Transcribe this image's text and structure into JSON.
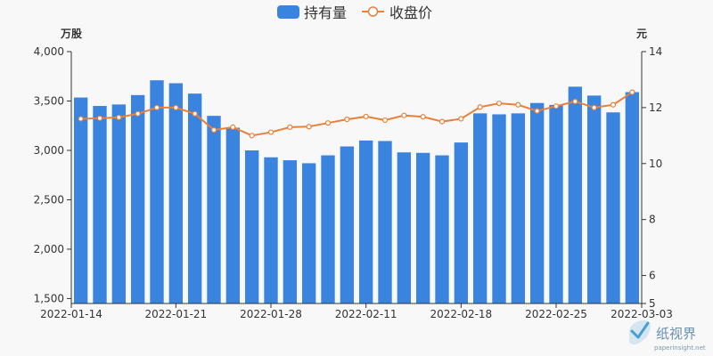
{
  "chart_data": {
    "type": "bar+line",
    "categories": [
      "2022-01-14",
      "2022-01-17",
      "2022-01-18",
      "2022-01-19",
      "2022-01-20",
      "2022-01-21",
      "2022-01-24",
      "2022-01-25",
      "2022-01-26",
      "2022-01-27",
      "2022-01-28",
      "2022-02-07",
      "2022-02-08",
      "2022-02-09",
      "2022-02-10",
      "2022-02-11",
      "2022-02-14",
      "2022-02-15",
      "2022-02-16",
      "2022-02-17",
      "2022-02-18",
      "2022-02-21",
      "2022-02-22",
      "2022-02-23",
      "2022-02-24",
      "2022-02-25",
      "2022-02-28",
      "2022-03-01",
      "2022-03-02",
      "2022-03-03"
    ],
    "x_tick_labels": [
      "2022-01-14",
      "2022-01-21",
      "2022-01-28",
      "2022-02-11",
      "2022-02-18",
      "2022-02-25",
      "2022-03-03"
    ],
    "series": [
      {
        "name": "持有量",
        "type": "bar",
        "axis": "left",
        "color": "#3a84e0",
        "values": [
          3535,
          3450,
          3465,
          3560,
          3710,
          3680,
          3575,
          3350,
          3230,
          3000,
          2930,
          2900,
          2870,
          2950,
          3040,
          3100,
          3095,
          2980,
          2975,
          2950,
          3080,
          3375,
          3365,
          3375,
          3480,
          3460,
          3645,
          3555,
          3385,
          3590
        ]
      },
      {
        "name": "收盘价",
        "type": "line",
        "axis": "right",
        "color": "#e8813a",
        "values": [
          11.6,
          11.62,
          11.65,
          11.78,
          12.0,
          12.0,
          11.78,
          11.2,
          11.3,
          11.0,
          11.12,
          11.3,
          11.32,
          11.45,
          11.58,
          11.68,
          11.55,
          11.72,
          11.67,
          11.5,
          11.6,
          12.02,
          12.15,
          12.1,
          11.88,
          12.05,
          12.22,
          12.0,
          12.1,
          12.55
        ]
      }
    ],
    "left_axis": {
      "unit": "万股",
      "min": 1450,
      "max": 4000,
      "ticks": [
        1500,
        2000,
        2500,
        3000,
        3500,
        4000
      ],
      "tick_labels": [
        "1,500",
        "2,000",
        "2,500",
        "3,000",
        "3,500",
        "4,000"
      ]
    },
    "right_axis": {
      "unit": "元",
      "min": 5,
      "max": 14,
      "ticks": [
        5,
        6,
        8,
        10,
        12,
        14
      ],
      "tick_labels": [
        "5",
        "6",
        "8",
        "10",
        "12",
        "14"
      ]
    },
    "legend": {
      "placement": "top-center"
    },
    "grid": false
  },
  "watermark": {
    "name_cn": "纸视界",
    "domain": "paperinsight.net"
  }
}
